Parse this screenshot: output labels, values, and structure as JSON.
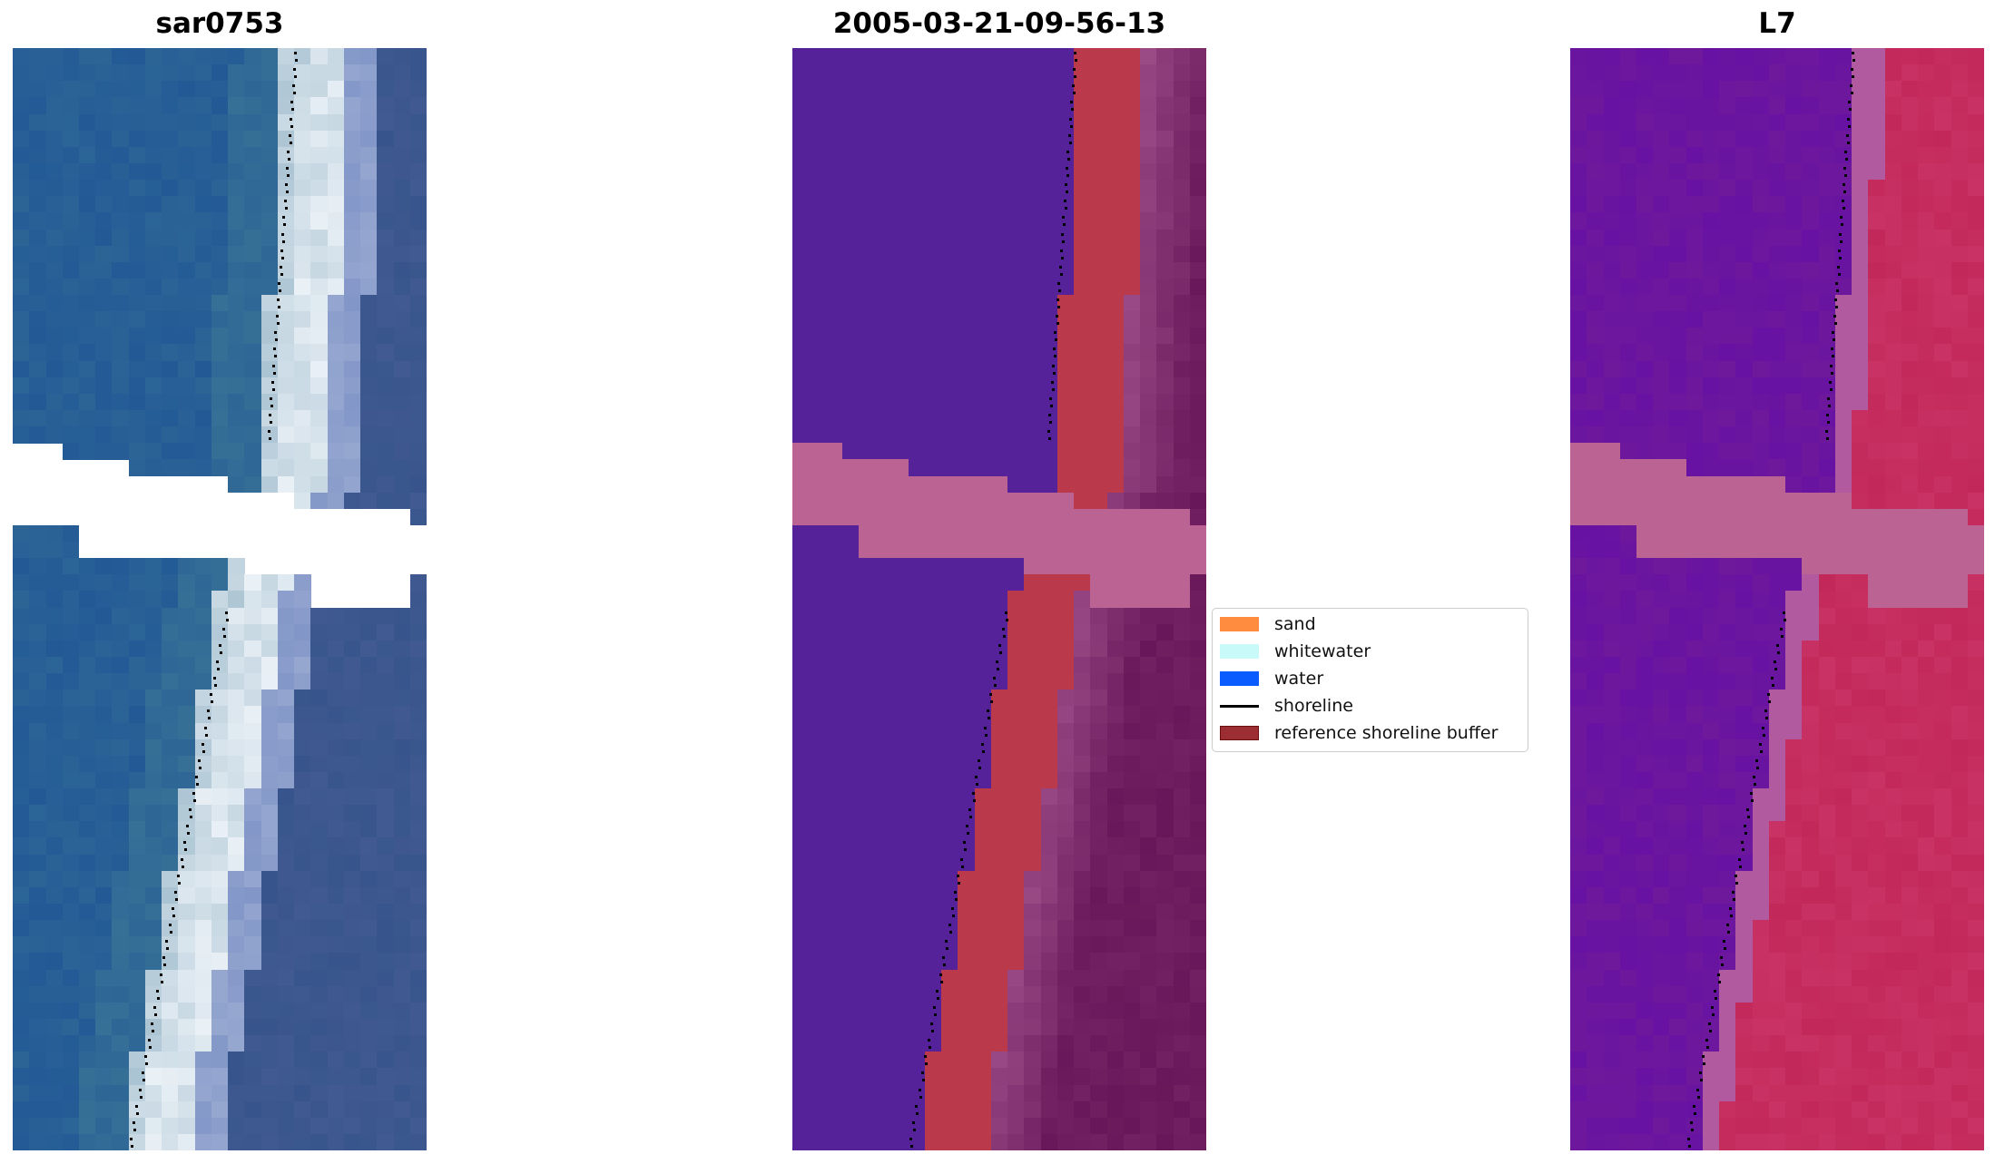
{
  "panels": [
    {
      "title": "sar0753",
      "kind": "rgb"
    },
    {
      "title": "2005-03-21-09-56-13",
      "kind": "class"
    },
    {
      "title": "L7",
      "kind": "index"
    }
  ],
  "legend": {
    "items": [
      {
        "label": "sand",
        "color": "#ff8c3f",
        "type": "patch"
      },
      {
        "label": "whitewater",
        "color": "#c8fafa",
        "type": "patch"
      },
      {
        "label": "water",
        "color": "#0a5cff",
        "type": "patch"
      },
      {
        "label": "shoreline",
        "color": "#000000",
        "type": "line"
      },
      {
        "label": "reference shoreline buffer",
        "color": "#9b2d33",
        "type": "patch"
      }
    ]
  }
}
